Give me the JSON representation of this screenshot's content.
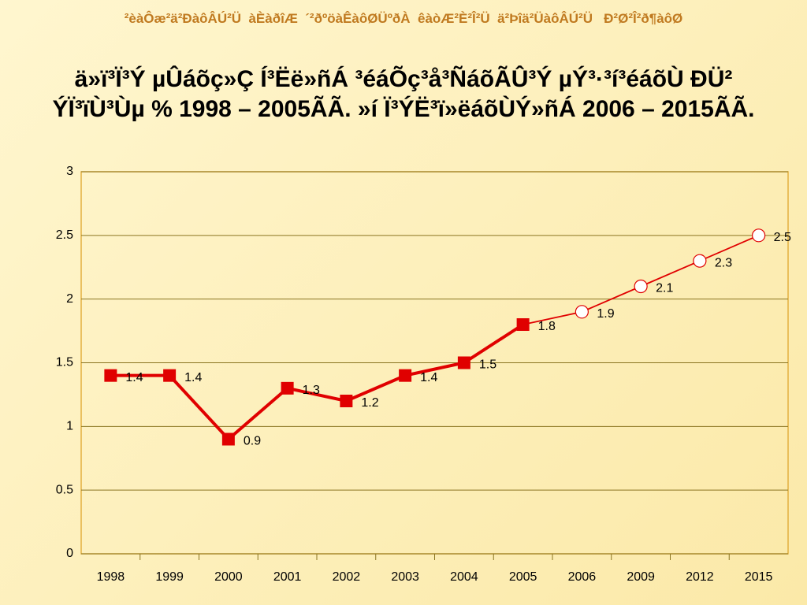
{
  "header": "²èàÔæ²ä²ÐàôÂÚ²Ü  àÈàðîÆ  ´²ðºöàÊàôØÜºðÀ  êàòÆ²È²Î²Ü  ä²Þîä²ÜàôÂÚ²Ü   Ð²Ø²Î²ð¶àôØ",
  "chart_data": {
    "type": "line",
    "title": "ä»ï³Ï³Ý µÛáõç»Ç Í³Ëë»ñÁ ³éáÕç³å³ÑáõÃÛ³Ý µÝ³·³í³éáõÙ  ÐÜ² ÝÏ³ïÙ³Ùµ % 1998 – 2005ÃÃ. »í Ï³ÝË³ï»ëáõÙÝ»ñÁ 2006 – 2015ÃÃ.",
    "categories": [
      "1998",
      "1999",
      "2000",
      "2001",
      "2002",
      "2003",
      "2004",
      "2005",
      "2006",
      "2009",
      "2012",
      "2015"
    ],
    "series": [
      {
        "color": "#e00000",
        "marker": "square",
        "values": [
          1.4,
          1.4,
          0.9,
          1.3,
          1.2,
          1.4,
          1.5,
          1.8,
          null,
          null,
          null,
          null
        ]
      },
      {
        "color": "#e00000",
        "marker": "circle",
        "values": [
          null,
          null,
          null,
          null,
          null,
          null,
          null,
          1.8,
          1.9,
          2.1,
          2.3,
          2.5
        ]
      }
    ],
    "ylim": [
      0,
      3
    ],
    "yticks": [
      0,
      0.5,
      1,
      1.5,
      2,
      2.5,
      3
    ],
    "grid": true
  }
}
